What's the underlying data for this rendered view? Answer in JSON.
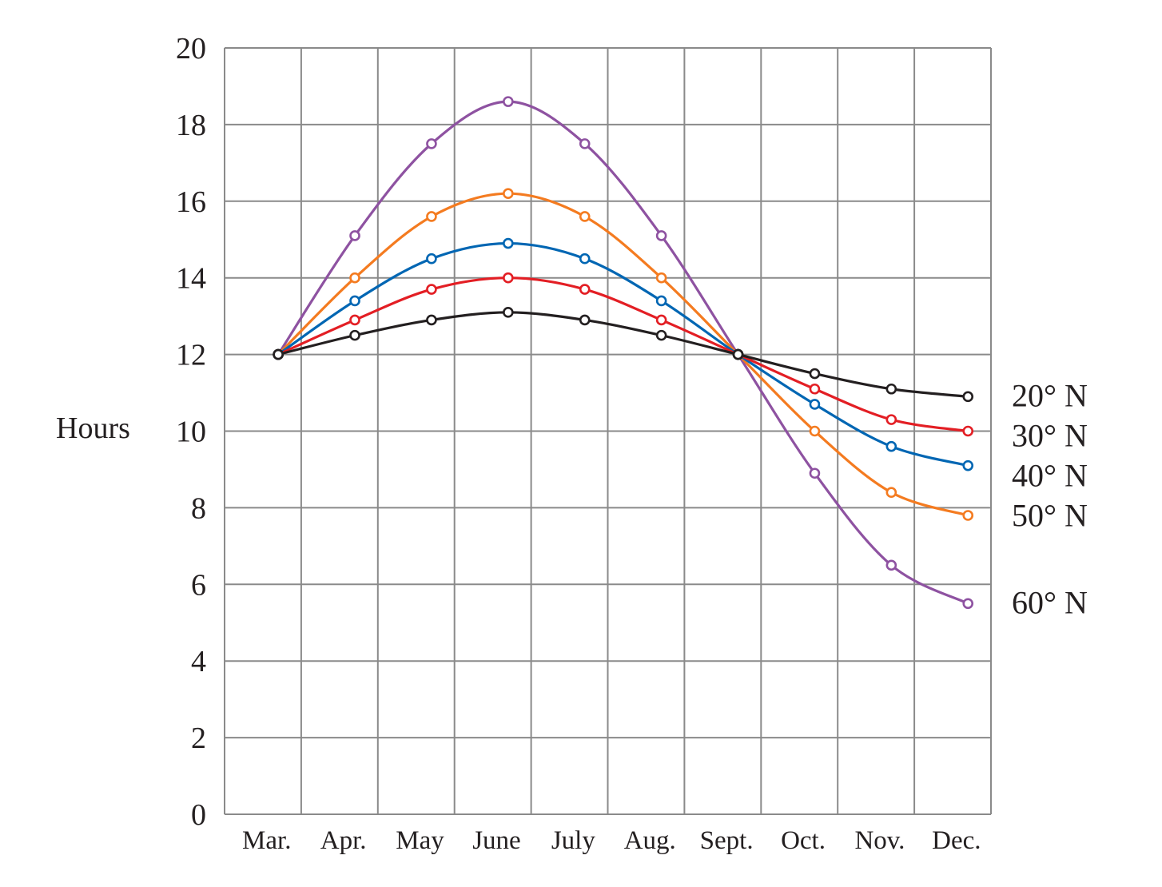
{
  "chart_data": {
    "type": "line",
    "title": "",
    "xlabel": "",
    "ylabel": "Hours",
    "ylim": [
      0,
      20
    ],
    "yticks": [
      0,
      2,
      4,
      6,
      8,
      10,
      12,
      14,
      16,
      18,
      20
    ],
    "categories": [
      "Mar.",
      "Apr.",
      "May",
      "June",
      "July",
      "Aug.",
      "Sept.",
      "Oct.",
      "Nov.",
      "Dec."
    ],
    "grid": true,
    "legend": "labels at right end of each series",
    "series": [
      {
        "name": "20° N",
        "color": "#231f20",
        "values": [
          12.0,
          12.5,
          12.9,
          13.1,
          12.9,
          12.5,
          12.0,
          11.5,
          11.1,
          10.9
        ]
      },
      {
        "name": "30° N",
        "color": "#e31e24",
        "values": [
          12.0,
          12.9,
          13.7,
          14.0,
          13.7,
          12.9,
          12.0,
          11.1,
          10.3,
          10.0
        ]
      },
      {
        "name": "40° N",
        "color": "#0066b3",
        "values": [
          12.0,
          13.4,
          14.5,
          14.9,
          14.5,
          13.4,
          12.0,
          10.7,
          9.6,
          9.1
        ]
      },
      {
        "name": "50° N",
        "color": "#f47b20",
        "values": [
          12.0,
          14.0,
          15.6,
          16.2,
          15.6,
          14.0,
          12.0,
          10.0,
          8.4,
          7.8
        ]
      },
      {
        "name": "60° N",
        "color": "#8e52a1",
        "values": [
          12.0,
          15.1,
          17.5,
          18.6,
          17.5,
          15.1,
          12.0,
          8.9,
          6.5,
          5.5
        ]
      }
    ]
  }
}
